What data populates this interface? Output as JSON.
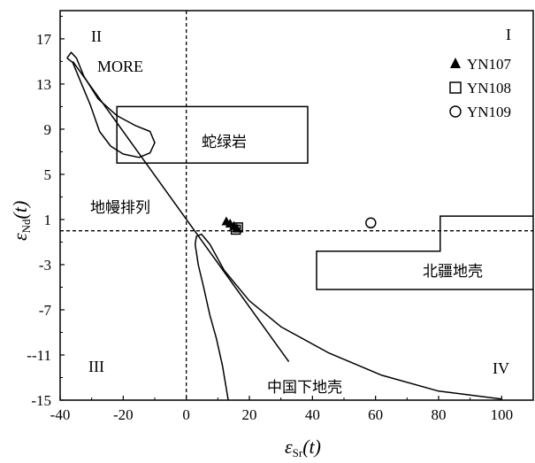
{
  "chart_data": {
    "type": "scatter",
    "xlim": [
      -40,
      110
    ],
    "ylim": [
      -15,
      19.5
    ],
    "xticks": [
      -40,
      -20,
      0,
      20,
      40,
      60,
      80,
      100
    ],
    "yticks": [
      17,
      13,
      9,
      5,
      1,
      -3,
      -7,
      -11,
      -15
    ],
    "ytick_labels": [
      "17",
      "13",
      "9",
      "5",
      "1",
      "-3",
      "-7",
      "--11",
      "-15"
    ],
    "xlabel": {
      "main": "ε",
      "sub": "Sr",
      "suffix": "(t)"
    },
    "ylabel": {
      "main": "ε",
      "sub": "Nd",
      "suffix": "(t)"
    },
    "grid": false,
    "legend_position": "top-right",
    "series": [
      {
        "name": "YN107",
        "marker": "filled-triangle",
        "points": [
          [
            12.7,
            0.8
          ],
          [
            13.9,
            0.6
          ],
          [
            15.1,
            0.4
          ],
          [
            16.0,
            0.2
          ]
        ]
      },
      {
        "name": "YN108",
        "marker": "open-square",
        "points": [
          [
            15.7,
            0.1
          ],
          [
            16.4,
            0.3
          ]
        ]
      },
      {
        "name": "YN109",
        "marker": "open-circle",
        "points": [
          [
            58.5,
            0.7
          ]
        ]
      }
    ],
    "region_labels": {
      "q1": "I",
      "q2": "II",
      "q3": "III",
      "q4": "IV"
    },
    "field_labels": {
      "more": "MORE",
      "ophiolite": "蛇绿岩",
      "mantle_array": "地幔排列",
      "north_xinjiang_crust": "北疆地壳",
      "china_lower_crust": "中国下地壳"
    },
    "ophiolite_box": {
      "x": [
        -22,
        38.5
      ],
      "y": [
        6.0,
        11.0
      ]
    },
    "north_xinjiang_crust_field": [
      [
        110,
        1.3
      ],
      [
        80.5,
        1.3
      ],
      [
        80.5,
        -1.8
      ],
      [
        41.3,
        -1.8
      ],
      [
        41.3,
        -5.2
      ],
      [
        110,
        -5.2
      ]
    ],
    "mantle_array_line": [
      [
        -36,
        15
      ],
      [
        32.5,
        -11.6
      ]
    ],
    "more_field": [
      [
        -37.8,
        15.3
      ],
      [
        -36.5,
        15.8
      ],
      [
        -34.8,
        15.3
      ],
      [
        -32.5,
        13.7
      ],
      [
        -28,
        11.7
      ],
      [
        -22,
        10.2
      ],
      [
        -16,
        9.3
      ],
      [
        -11.5,
        8.8
      ],
      [
        -10.0,
        7.8
      ],
      [
        -11.5,
        6.9
      ],
      [
        -15,
        6.5
      ],
      [
        -20,
        6.8
      ],
      [
        -24,
        7.5
      ],
      [
        -27.5,
        8.8
      ],
      [
        -30.5,
        11.2
      ],
      [
        -33.5,
        13.2
      ],
      [
        -36,
        14.9
      ],
      [
        -37.8,
        15.3
      ]
    ],
    "china_lower_crust_field": [
      [
        13.3,
        -15
      ],
      [
        11.5,
        -12
      ],
      [
        9.5,
        -9.5
      ],
      [
        7.5,
        -7.5
      ],
      [
        5.5,
        -5.0
      ],
      [
        3.8,
        -3.0
      ],
      [
        2.8,
        -1.2
      ],
      [
        3.2,
        -0.5
      ],
      [
        4.8,
        -0.3
      ],
      [
        7.5,
        -1.2
      ],
      [
        12,
        -3.5
      ],
      [
        20,
        -6.2
      ],
      [
        30,
        -8.5
      ],
      [
        45,
        -10.8
      ],
      [
        62,
        -12.8
      ],
      [
        80,
        -14.2
      ],
      [
        100,
        -14.9
      ]
    ]
  }
}
